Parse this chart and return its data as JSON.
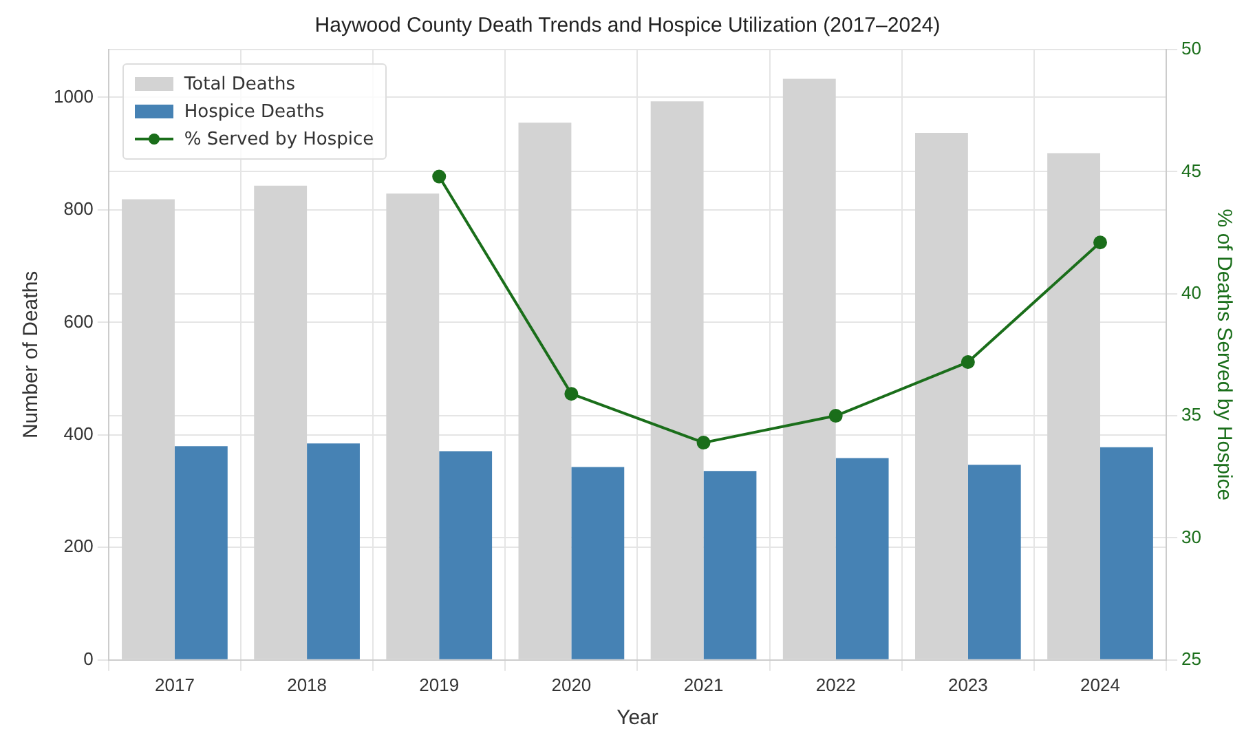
{
  "chart_data": {
    "type": "bar",
    "title": "Haywood County Death Trends and Hospice Utilization (2017–2024)",
    "xlabel": "Year",
    "ylabel": "Number of Deaths",
    "y2label": "% of Deaths Served by Hospice",
    "categories": [
      "2017",
      "2018",
      "2019",
      "2020",
      "2021",
      "2022",
      "2023",
      "2024"
    ],
    "series": [
      {
        "name": "Total Deaths",
        "color": "#d3d3d3",
        "values": [
          819,
          843,
          829,
          955,
          993,
          1033,
          937,
          901
        ]
      },
      {
        "name": "Hospice Deaths",
        "color": "#4682b4",
        "values": [
          380,
          385,
          371,
          343,
          336,
          359,
          347,
          378
        ]
      },
      {
        "name": "% Served by Hospice",
        "type": "line",
        "axis": "y2",
        "color": "#1a6e1a",
        "marker": "circle",
        "values": [
          null,
          null,
          44.8,
          35.9,
          33.9,
          35.0,
          37.2,
          42.1
        ]
      }
    ],
    "ylim": [
      0,
      1085
    ],
    "yticks": [
      0,
      200,
      400,
      600,
      800,
      1000
    ],
    "y2lim": [
      25,
      50
    ],
    "y2ticks": [
      25,
      30,
      35,
      40,
      45,
      50
    ],
    "grid": true,
    "legend": "top left"
  }
}
